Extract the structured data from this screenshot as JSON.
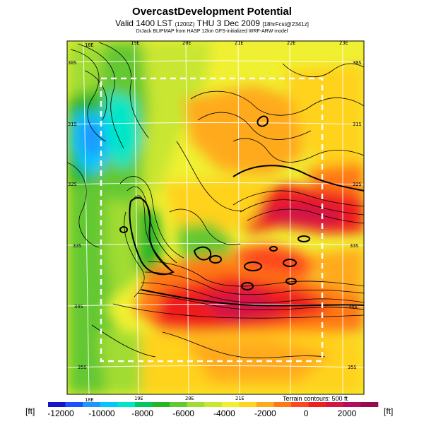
{
  "header": {
    "title": "OvercastDevelopment Potential",
    "subtitle_main": "Valid 1400 LST",
    "subtitle_code": "(1200Z)",
    "subtitle_date": "THU 3 Dec 2009",
    "subtitle_fcst": "[18hrFcst@2341z]",
    "credit": "DrJack BLIPMAP from HASP 12km GFS-initialized WRF-ARW model"
  },
  "map": {
    "lon_labels_top": [
      "18E",
      "19E",
      "20E",
      "21E",
      "22E",
      "23E"
    ],
    "lon_labels_bottom": [
      "18E",
      "19E",
      "20E",
      "21E"
    ],
    "lat_labels_left": [
      "30S",
      "31S",
      "32S",
      "33S",
      "34S",
      "35S"
    ],
    "lat_labels_right": [
      "30S",
      "31S",
      "32S",
      "33S",
      "34S",
      "35S"
    ],
    "terrain_note": "Terrain contours: 500 ft"
  },
  "colorbar": {
    "unit_left": "[ft]",
    "unit_right": "[ft]",
    "ticks": [
      "-12000",
      "-10000",
      "-8000",
      "-6000",
      "-4000",
      "-2000",
      "0",
      "2000"
    ],
    "colors": [
      "#1414c8",
      "#1e50ff",
      "#1e96ff",
      "#00c8ff",
      "#00e6c8",
      "#00c864",
      "#28b428",
      "#64c832",
      "#a0dc32",
      "#c8e632",
      "#f0f032",
      "#ffd21e",
      "#ffaa1e",
      "#ff7814",
      "#ff461e",
      "#f01e1e",
      "#d21446",
      "#b40a64",
      "#960a50"
    ]
  }
}
